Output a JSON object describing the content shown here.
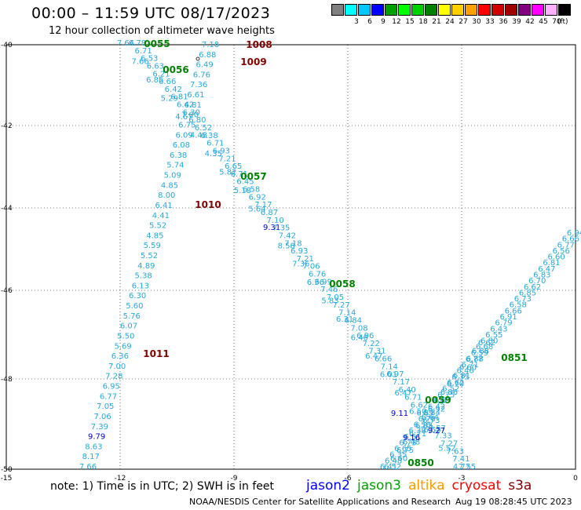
{
  "header": {
    "title": "00:00 – 11:59 UTC 08/17/2023",
    "subtitle": "12 hour collection of altimeter wave heights"
  },
  "legend": {
    "unit": "(ft)",
    "items": [
      {
        "label": "",
        "color": "#808080"
      },
      {
        "label": "3",
        "color": "#00ffff"
      },
      {
        "label": "6",
        "color": "#00c8ff"
      },
      {
        "label": "9",
        "color": "#0000ff"
      },
      {
        "label": "12",
        "color": "#00a000"
      },
      {
        "label": "15",
        "color": "#00ff00"
      },
      {
        "label": "18",
        "color": "#00d000"
      },
      {
        "label": "21",
        "color": "#008000"
      },
      {
        "label": "24",
        "color": "#ffff00"
      },
      {
        "label": "27",
        "color": "#ffd000"
      },
      {
        "label": "30",
        "color": "#ffa000"
      },
      {
        "label": "33",
        "color": "#ff0000"
      },
      {
        "label": "36",
        "color": "#d00000"
      },
      {
        "label": "39",
        "color": "#a00000"
      },
      {
        "label": "42",
        "color": "#800080"
      },
      {
        "label": "45",
        "color": "#ff00ff"
      },
      {
        "label": "70",
        "color": "#ffb0ff"
      },
      {
        "label": "",
        "color": "#000000"
      }
    ]
  },
  "map": {
    "lon_labels": [
      "-15",
      "-12",
      "-9",
      "-6",
      "-3",
      "0"
    ],
    "lat_labels": [
      "-40",
      "-42",
      "-44",
      "-46",
      "-48",
      "-50"
    ],
    "track_labels": [
      {
        "text": "0055",
        "color": "#008000"
      },
      {
        "text": "1008",
        "color": "#800000"
      },
      {
        "text": "1009",
        "color": "#800000"
      },
      {
        "text": "0056",
        "color": "#008000"
      },
      {
        "text": "0057",
        "color": "#008000"
      },
      {
        "text": "1010",
        "color": "#800000"
      },
      {
        "text": "0058",
        "color": "#008000"
      },
      {
        "text": "1011",
        "color": "#800000"
      },
      {
        "text": "0851",
        "color": "#008000"
      },
      {
        "text": "0059",
        "color": "#008000"
      },
      {
        "text": "0850",
        "color": "#008000"
      }
    ],
    "track_a_values": [
      "7.64",
      "7.66",
      "6.85",
      "5.29",
      "4.67",
      "4.48",
      "4.35",
      "5.82",
      "5.18",
      "5.64",
      "9.31",
      "8.58",
      "7.36",
      "6.36",
      "5.83",
      "6.31",
      "6.46",
      "6.47",
      "6.01",
      "6.47",
      "6.50",
      "6.55",
      "5.52",
      "4.77"
    ],
    "track_c_values": [
      "7.18",
      "6.88",
      "6.49",
      "6.76",
      "7.36",
      "6.61",
      "6.81",
      "7.00",
      "6.75",
      "6.09",
      "6.08",
      "6.38",
      "5.74",
      "5.09",
      "4.85",
      "8.00",
      "6.41",
      "4.41",
      "5.52",
      "4.85",
      "5.59",
      "5.52",
      "4.89",
      "5.38",
      "6.13",
      "6.30",
      "5.60",
      "5.76",
      "6.07",
      "5.50",
      "5.69",
      "6.36",
      "7.00",
      "7.28",
      "6.95",
      "6.77",
      "7.05",
      "7.06",
      "7.39",
      "9.79",
      "8.63",
      "8.17",
      "7.66"
    ],
    "track_d_values": [
      "6.78",
      "6.71",
      "6.53",
      "6.63",
      "6.21",
      "6.66",
      "6.42",
      "6.81",
      "6.42",
      "6.30",
      "6.80",
      "6.52",
      "6.38",
      "6.71",
      "6.93",
      "7.21",
      "6.65",
      "6.71",
      "6.45",
      "6.58",
      "6.92",
      "7.17",
      "6.87",
      "7.10",
      "7.35",
      "7.42",
      "7.18",
      "6.93",
      "7.21",
      "7.06",
      "6.76",
      "6.99",
      "7.46",
      "7.05",
      "7.27",
      "7.14",
      "6.84",
      "7.08",
      "6.96",
      "7.22",
      "7.31",
      "6.66",
      "7.14",
      "6.97",
      "7.17",
      "6.40",
      "6.71",
      "6.62",
      "6.89",
      "6.73",
      "7.57",
      "7.33",
      "7.27",
      "7.63",
      "7.41",
      "7.55"
    ],
    "track_e_values": [
      "6.41",
      "6.48",
      "6.35",
      "6.65",
      "6.73",
      "6.51",
      "6.38",
      "6.56",
      "6.70",
      "6.84",
      "6.42",
      "6.60",
      "6.75",
      "6.52",
      "6.62",
      "6.35",
      "6.46",
      "6.71",
      "6.88",
      "6.59",
      "6.68",
      "6.80",
      "6.55",
      "6.43",
      "6.79",
      "6.91",
      "6.66",
      "6.58",
      "6.73",
      "6.85",
      "6.62",
      "6.70",
      "6.83",
      "6.47",
      "6.81",
      "6.60",
      "6.56",
      "6.77",
      "6.66",
      "6.94"
    ],
    "track_f_values": [
      "6.52",
      "6.60",
      "6.75",
      "6.48",
      "6.71",
      "6.83",
      "6.64",
      "6.92",
      "6.57",
      "6.86",
      "6.70",
      "6.81",
      "6.60",
      "6.77",
      "6.88",
      "6.62"
    ],
    "cluster_values": [
      "9.11",
      "9.16",
      "9.27"
    ]
  },
  "footer": {
    "note": "note: 1) Time is in UTC; 2) SWH is in feet",
    "satellites": [
      {
        "name": "jason2",
        "color": "#0000ff"
      },
      {
        "name": "jason3",
        "color": "#00a000"
      },
      {
        "name": "altika",
        "color": "#ff9900"
      },
      {
        "name": "cryosat",
        "color": "#ff0000"
      },
      {
        "name": "s3a",
        "color": "#800000"
      }
    ],
    "credit": "NOAA/NESDIS Center for Satellite Applications and Research",
    "timestamp": "Aug 19 08:28:45 UTC 2023"
  }
}
